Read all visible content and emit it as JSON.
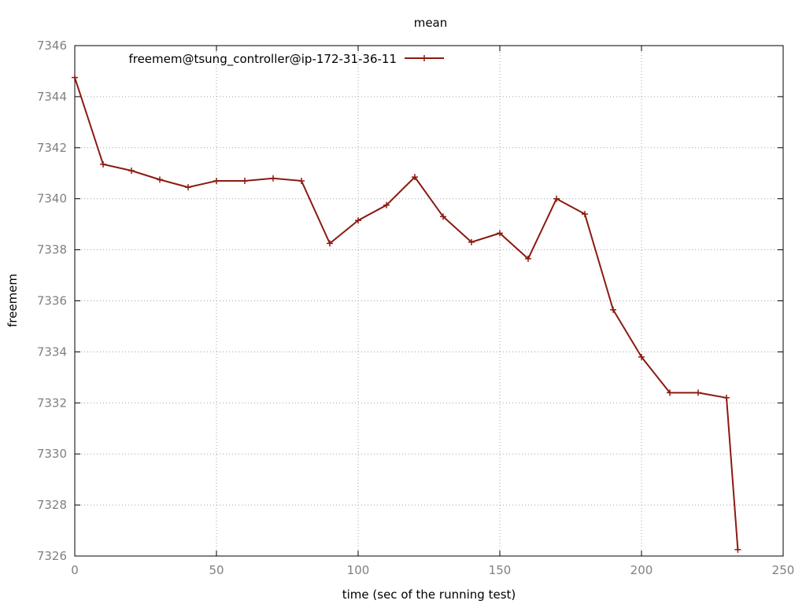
{
  "chart_data": {
    "type": "line",
    "title": "mean",
    "xlabel": "time (sec of the running test)",
    "ylabel": "freemem",
    "xlim": [
      0,
      250
    ],
    "ylim": [
      7326,
      7346
    ],
    "x_ticks": [
      0,
      50,
      100,
      150,
      200,
      250
    ],
    "y_ticks": [
      7326,
      7328,
      7330,
      7332,
      7334,
      7336,
      7338,
      7340,
      7342,
      7344,
      7346
    ],
    "grid": true,
    "legend_position": "top-left",
    "series": [
      {
        "name": "freemem@tsung_controller@ip-172-31-36-11",
        "color": "#8b1a10",
        "marker": "plus",
        "x": [
          0,
          10,
          20,
          30,
          40,
          50,
          60,
          70,
          80,
          90,
          100,
          110,
          120,
          130,
          140,
          150,
          160,
          170,
          180,
          190,
          200,
          210,
          220,
          230,
          234
        ],
        "y": [
          7344.75,
          7341.35,
          7341.1,
          7340.75,
          7340.45,
          7340.7,
          7340.7,
          7340.8,
          7340.7,
          7338.25,
          7339.15,
          7339.75,
          7340.85,
          7339.3,
          7338.3,
          7338.65,
          7337.65,
          7340.0,
          7339.4,
          7335.65,
          7333.8,
          7332.4,
          7332.4,
          7332.2,
          7326.25
        ]
      }
    ]
  }
}
